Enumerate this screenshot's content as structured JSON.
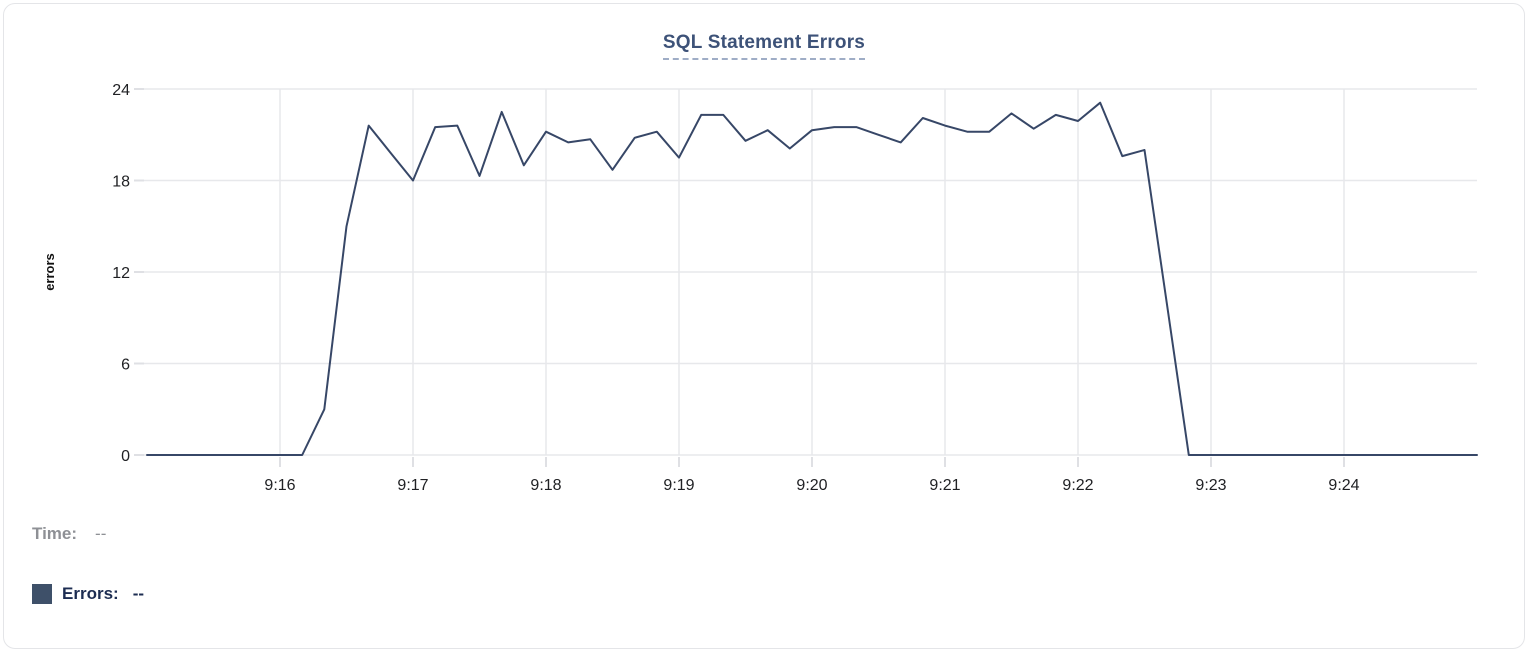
{
  "chart_data": {
    "type": "line",
    "title": "SQL Statement Errors",
    "xlabel": "",
    "ylabel": "errors",
    "x_start": "9:15:00",
    "x_end": "9:25:00",
    "interval_seconds": 10,
    "ylim": [
      0,
      24
    ],
    "y_ticks": [
      0,
      6,
      12,
      18,
      24
    ],
    "x_ticks": [
      {
        "label": "9:16",
        "minute": 1
      },
      {
        "label": "9:17",
        "minute": 2
      },
      {
        "label": "9:18",
        "minute": 3
      },
      {
        "label": "9:19",
        "minute": 4
      },
      {
        "label": "9:20",
        "minute": 5
      },
      {
        "label": "9:21",
        "minute": 6
      },
      {
        "label": "9:22",
        "minute": 7
      },
      {
        "label": "9:23",
        "minute": 8
      },
      {
        "label": "9:24",
        "minute": 9
      }
    ],
    "grid": true,
    "legend_position": "bottom-left",
    "line_color": "#374767",
    "series": [
      {
        "name": "Errors",
        "values": [
          0,
          0,
          0,
          0,
          0,
          0,
          0,
          0,
          3,
          15,
          21.6,
          19.8,
          18,
          21.5,
          21.6,
          18.3,
          22.5,
          19,
          21.2,
          20.5,
          20.7,
          18.7,
          20.8,
          21.2,
          19.5,
          22.3,
          22.3,
          20.6,
          21.3,
          20.1,
          21.3,
          21.5,
          21.5,
          21,
          20.5,
          22.1,
          21.6,
          21.2,
          21.2,
          22.4,
          21.4,
          22.3,
          21.9,
          23.1,
          19.6,
          20,
          10,
          0,
          0,
          0,
          0,
          0,
          0,
          0,
          0,
          0,
          0,
          0,
          0,
          0,
          0
        ]
      }
    ]
  },
  "tooltip_legend": {
    "time_label": "Time:",
    "time_value": "--",
    "errors_label": "Errors:",
    "errors_value": "--",
    "swatch_color": "#3e5069"
  },
  "style_colors": {
    "grid": "#e7e8eb",
    "tick": "#dfe0e4",
    "title": "#3d5278",
    "card_border": "#e4e5e8"
  }
}
